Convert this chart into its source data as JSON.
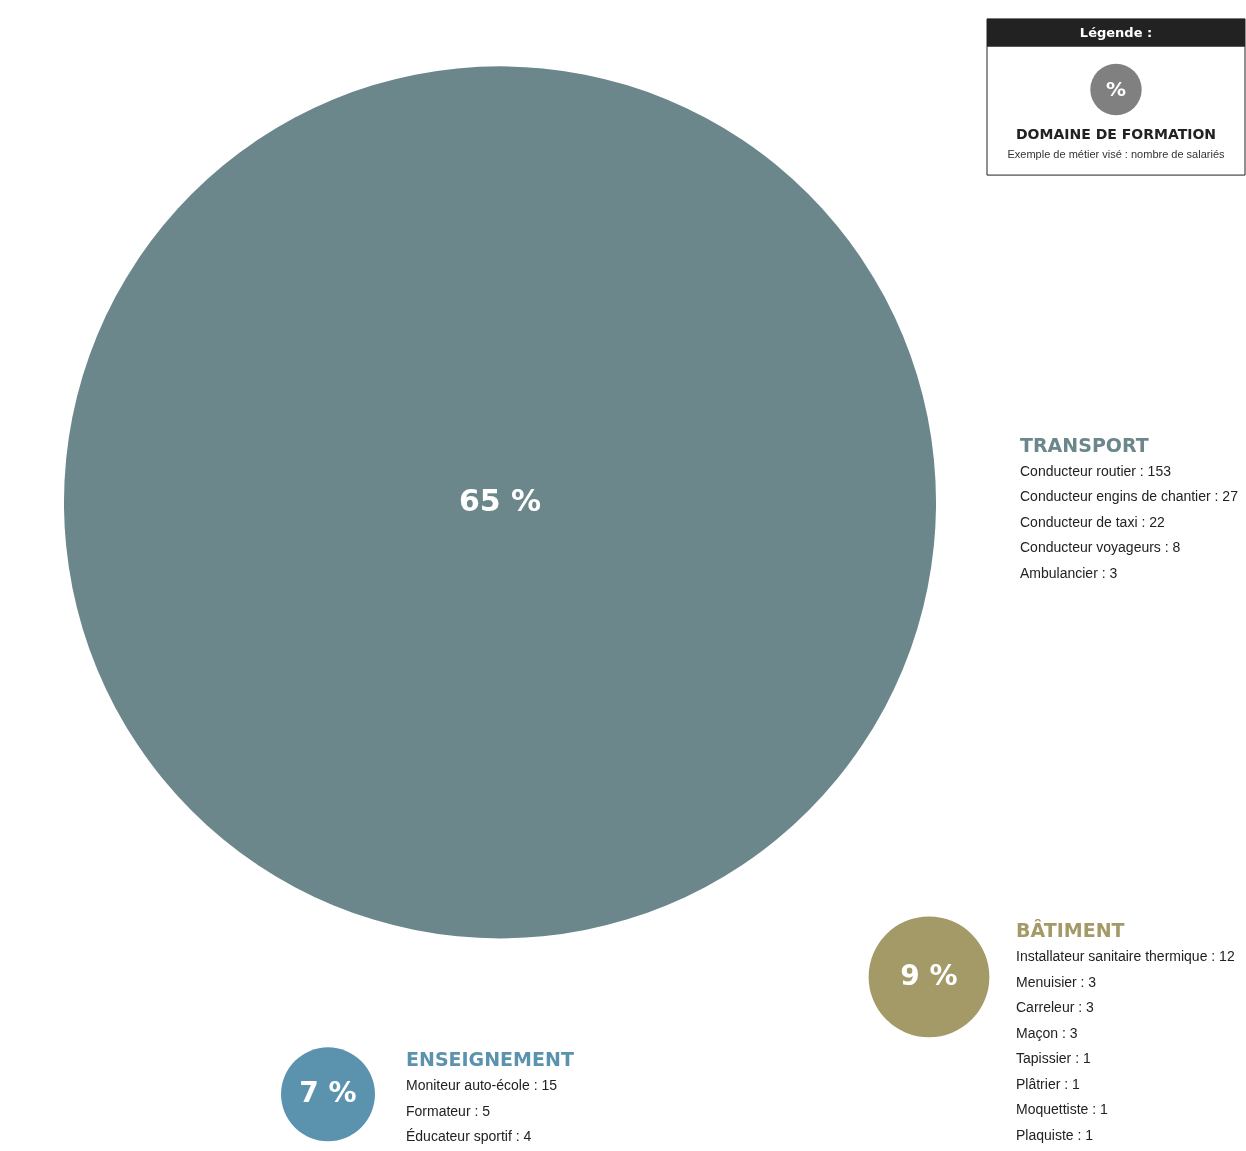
{
  "chart_data": {
    "type": "other",
    "categories": [
      "TRANSPORT",
      "BÂTIMENT",
      "ENSEIGNEMENT"
    ],
    "values": [
      65,
      9,
      7
    ],
    "value_labels": [
      "65 %",
      "9 %",
      "7 %"
    ],
    "colors": [
      "#6b878b",
      "#a39a68",
      "#5b93ae"
    ],
    "legend_title": "Légende :",
    "annotations": [
      "Conducteur routier : 153\nConducteur engins de chantier : 27\nConducteur de taxi : 22\nConducteur voyageurs : 8\nAmbulancier : 3",
      "Installateur sanitaire thermique : 12\nMenuisier : 3\nCarreleur : 3\nMaçon : 3\nTapissier : 1\nPlâtrier : 1\nMoquettiste : 1\nPlaquiste : 1",
      "Moniteur auto-école : 15\nFormateur : 5\nÉducateur sportif : 4",
      "%",
      "DOMAINE DE FORMATION",
      "Exemple de métier visé : nombre de salariés"
    ]
  }
}
